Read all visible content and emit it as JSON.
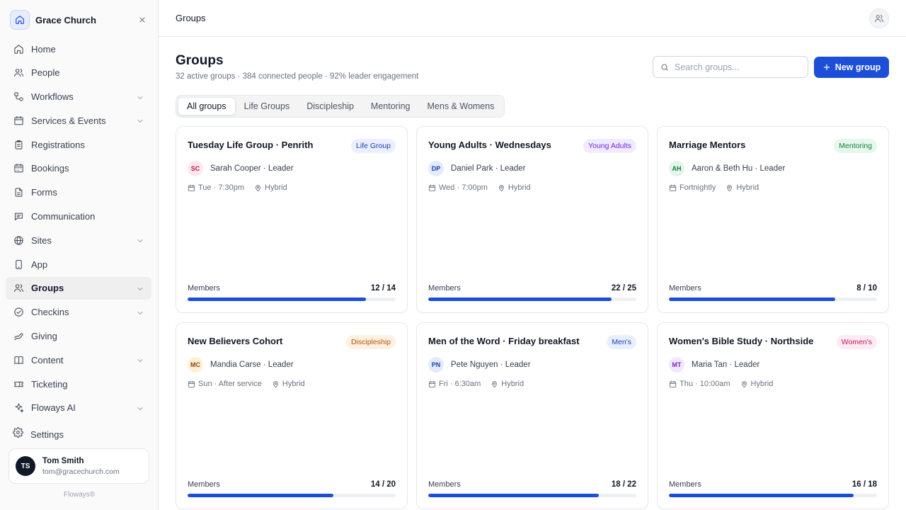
{
  "org": {
    "name": "Grace Church"
  },
  "nav": [
    {
      "label": "Home",
      "icon": "home-icon",
      "chevron": false,
      "active": false
    },
    {
      "label": "People",
      "icon": "people-icon",
      "chevron": false,
      "active": false
    },
    {
      "label": "Workflows",
      "icon": "workflow-icon",
      "chevron": true,
      "active": false
    },
    {
      "label": "Services & Events",
      "icon": "calendar-icon",
      "chevron": true,
      "active": false
    },
    {
      "label": "Registrations",
      "icon": "clipboard-icon",
      "chevron": false,
      "active": false
    },
    {
      "label": "Bookings",
      "icon": "calendar-grid-icon",
      "chevron": false,
      "active": false
    },
    {
      "label": "Forms",
      "icon": "document-icon",
      "chevron": false,
      "active": false
    },
    {
      "label": "Communication",
      "icon": "message-icon",
      "chevron": false,
      "active": false
    },
    {
      "label": "Sites",
      "icon": "globe-icon",
      "chevron": true,
      "active": false
    },
    {
      "label": "App",
      "icon": "mobile-icon",
      "chevron": false,
      "active": false
    },
    {
      "label": "Groups",
      "icon": "groups-icon",
      "chevron": true,
      "active": true
    },
    {
      "label": "Checkins",
      "icon": "check-circle-icon",
      "chevron": true,
      "active": false
    },
    {
      "label": "Giving",
      "icon": "giving-hand-icon",
      "chevron": false,
      "active": false
    },
    {
      "label": "Content",
      "icon": "book-icon",
      "chevron": true,
      "active": false
    },
    {
      "label": "Ticketing",
      "icon": "ticket-icon",
      "chevron": false,
      "active": false
    },
    {
      "label": "Floways AI",
      "icon": "sparkle-icon",
      "chevron": true,
      "active": false
    }
  ],
  "settings": {
    "label": "Settings"
  },
  "user": {
    "initials": "TS",
    "name": "Tom Smith",
    "email": "tom@gracechurch.com"
  },
  "brand": "Floways®",
  "topbar": {
    "breadcrumb": "Groups"
  },
  "page": {
    "title": "Groups",
    "subtitle": "32 active groups · 384 connected people · 92% leader engagement"
  },
  "search": {
    "placeholder": "Search groups...",
    "value": ""
  },
  "new_button": {
    "label": "New group"
  },
  "tabs": [
    {
      "label": "All groups",
      "active": true
    },
    {
      "label": "Life Groups",
      "active": false
    },
    {
      "label": "Discipleship",
      "active": false
    },
    {
      "label": "Mentoring",
      "active": false
    },
    {
      "label": "Mens & Womens",
      "active": false
    }
  ],
  "members_label": "Members",
  "groups": [
    {
      "title": "Tuesday Life Group · Penrith",
      "badge": "Life Group",
      "badge_bg": "#eaf0ff",
      "badge_fg": "#1e40af",
      "initials": "SC",
      "initials_bg": "#fde8ee",
      "initials_fg": "#be185d",
      "leader": "Sarah Cooper · Leader",
      "schedule": "Tue · 7:30pm",
      "location": "Hybrid",
      "members": 12,
      "capacity": 14,
      "count_text": "12 / 14"
    },
    {
      "title": "Young Adults · Wednesdays",
      "badge": "Young Adults",
      "badge_bg": "#f1ebff",
      "badge_fg": "#6d28d9",
      "initials": "DP",
      "initials_bg": "#e3ebfd",
      "initials_fg": "#1e40af",
      "leader": "Daniel Park · Leader",
      "schedule": "Wed · 7:00pm",
      "location": "Hybrid",
      "members": 22,
      "capacity": 25,
      "count_text": "22 / 25"
    },
    {
      "title": "Marriage Mentors",
      "badge": "Mentoring",
      "badge_bg": "#e6f7ec",
      "badge_fg": "#15803d",
      "initials": "AH",
      "initials_bg": "#e2f5e8",
      "initials_fg": "#15803d",
      "leader": "Aaron & Beth Hu · Leader",
      "schedule": "Fortnightly",
      "location": "Hybrid",
      "members": 8,
      "capacity": 10,
      "count_text": "8 / 10"
    },
    {
      "title": "New Believers Cohort",
      "badge": "Discipleship",
      "badge_bg": "#fdf1e3",
      "badge_fg": "#b45309",
      "initials": "MC",
      "initials_bg": "#fdf1d6",
      "initials_fg": "#92400e",
      "leader": "Mandia Carse · Leader",
      "schedule": "Sun · After service",
      "location": "Hybrid",
      "members": 14,
      "capacity": 20,
      "count_text": "14 / 20"
    },
    {
      "title": "Men of the Word · Friday breakfast",
      "badge": "Men's",
      "badge_bg": "#e8efff",
      "badge_fg": "#1e40af",
      "initials": "PN",
      "initials_bg": "#e3ebfd",
      "initials_fg": "#1e40af",
      "leader": "Pete Nguyen · Leader",
      "schedule": "Fri · 6:30am",
      "location": "Hybrid",
      "members": 18,
      "capacity": 22,
      "count_text": "18 / 22"
    },
    {
      "title": "Women's Bible Study · Northside",
      "badge": "Women's",
      "badge_bg": "#fdeaf3",
      "badge_fg": "#be185d",
      "initials": "MT",
      "initials_bg": "#f1e8fb",
      "initials_fg": "#7e22ce",
      "leader": "Maria Tan · Leader",
      "schedule": "Thu · 10:00am",
      "location": "Hybrid",
      "members": 16,
      "capacity": 18,
      "count_text": "16 / 18"
    }
  ],
  "colors": {
    "accent": "#1d4ed8",
    "sidebar_bg": "#fafafa",
    "border": "#e5e7eb"
  }
}
